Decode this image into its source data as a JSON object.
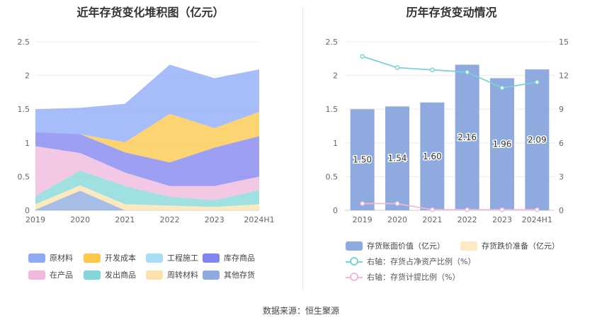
{
  "chart_data": [
    {
      "type": "area",
      "stacked": true,
      "title": "近年存货变化堆积图（亿元）",
      "x": [
        "2019",
        "2020",
        "2021",
        "2022",
        "2023",
        "2024H1"
      ],
      "ylim": [
        0,
        2.5
      ],
      "yticks": [
        "0",
        "0.5",
        "1",
        "1.5",
        "2",
        "2.5"
      ],
      "series": [
        {
          "name": "原材料",
          "color": "#8eaaf7",
          "values": [
            0.34,
            0.39,
            0.57,
            0.73,
            0.74,
            0.63
          ]
        },
        {
          "name": "开发成本",
          "color": "#fdc84a",
          "values": [
            0,
            0,
            0.15,
            0.72,
            0.29,
            0.36
          ]
        },
        {
          "name": "工程施工",
          "color": "#a6dcf5",
          "values": [
            0,
            0,
            0,
            0,
            0,
            0
          ]
        },
        {
          "name": "库存商品",
          "color": "#8184f0",
          "values": [
            0.21,
            0.28,
            0.3,
            0.35,
            0.57,
            0.6
          ]
        },
        {
          "name": "在产品",
          "color": "#f0b9dc",
          "values": [
            0.74,
            0.26,
            0.2,
            0.16,
            0.21,
            0.2
          ]
        },
        {
          "name": "发出商品",
          "color": "#84d7d8",
          "values": [
            0.12,
            0.22,
            0.27,
            0.13,
            0.1,
            0.21
          ]
        },
        {
          "name": "周转材料",
          "color": "#fce3ad",
          "values": [
            0.08,
            0.08,
            0.09,
            0.07,
            0.05,
            0.09
          ]
        },
        {
          "name": "其他存货",
          "color": "#8eaade",
          "values": [
            0.01,
            0.29,
            0.0,
            0.0,
            0.0,
            0.0
          ]
        }
      ],
      "legend_order": [
        "原材料",
        "开发成本",
        "工程施工",
        "库存商品",
        "在产品",
        "发出商品",
        "周转材料",
        "其他存货"
      ]
    },
    {
      "type": "bar",
      "title": "历年存货变动情况",
      "categories": [
        "2019",
        "2020",
        "2021",
        "2022",
        "2023",
        "2024H1"
      ],
      "ylim": [
        0,
        2.5
      ],
      "yticks": [
        "0",
        "0.5",
        "1",
        "1.5",
        "2",
        "2.5"
      ],
      "y2lim": [
        0,
        15
      ],
      "y2ticks": [
        "0",
        "3",
        "6",
        "9",
        "12",
        "15"
      ],
      "series": [
        {
          "name": "存货账面价值（亿元）",
          "type": "bar",
          "color": "#8eaade",
          "values": [
            1.5,
            1.54,
            1.6,
            2.16,
            1.96,
            2.09
          ],
          "labels": [
            "1.50",
            "1.54",
            "1.60",
            "2.16",
            "1.96",
            "2.09"
          ]
        },
        {
          "name": "存货跌价准备（亿元）",
          "type": "bar",
          "color": "#fde9c4",
          "values": [
            0.01,
            0.01,
            0.0,
            0.0,
            0.0,
            0.0
          ]
        },
        {
          "name": "右轴：存货占净资产比例（%）",
          "type": "line",
          "axis": "right",
          "color": "#7dd3d3",
          "values": [
            13.7,
            12.7,
            12.5,
            12.3,
            10.9,
            11.4
          ]
        },
        {
          "name": "右轴：存货计提比例（%）",
          "type": "line",
          "axis": "right",
          "color": "#f0b9dc",
          "values": [
            0.6,
            0.6,
            0.05,
            0.05,
            0.05,
            0.05
          ]
        }
      ]
    }
  ],
  "footer": {
    "source": "数据来源：恒生聚源"
  }
}
